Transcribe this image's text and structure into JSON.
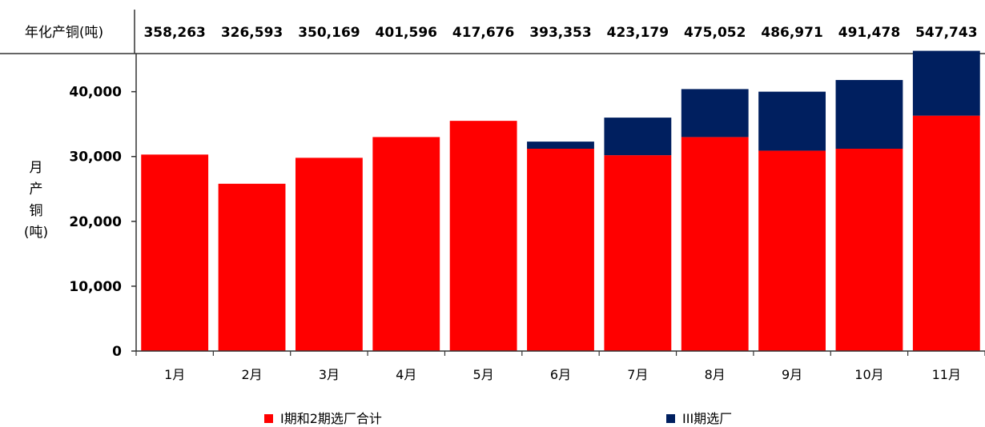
{
  "annual_row": {
    "label": "年化产铜(吨)",
    "values": [
      "358,263",
      "326,593",
      "350,169",
      "401,596",
      "417,676",
      "393,353",
      "423,179",
      "475,052",
      "486,971",
      "491,478",
      "547,743"
    ]
  },
  "y_axis_label_chars": [
    "月",
    "产",
    "铜",
    "(吨)"
  ],
  "colors": {
    "phase12": "#ff0000",
    "phase3": "#001f5f",
    "axis": "#333333"
  },
  "chart_data": {
    "type": "bar",
    "stacked": true,
    "categories": [
      "1月",
      "2月",
      "3月",
      "4月",
      "5月",
      "6月",
      "7月",
      "8月",
      "9月",
      "10月",
      "11月"
    ],
    "series": [
      {
        "name": "I期和2期选厂合计",
        "values": [
          30300,
          25800,
          29800,
          33000,
          35500,
          31200,
          30200,
          33000,
          30900,
          31200,
          36300
        ]
      },
      {
        "name": "III期选厂",
        "values": [
          0,
          0,
          0,
          0,
          0,
          1100,
          5800,
          7400,
          9100,
          10600,
          10000
        ]
      }
    ],
    "ylim": [
      0,
      46000
    ],
    "yticks": [
      0,
      10000,
      20000,
      30000,
      40000
    ],
    "ytick_labels": [
      "0",
      "10,000",
      "20,000",
      "30,000",
      "40,000"
    ],
    "ylabel": "月产铜(吨)",
    "legend_position": "bottom"
  }
}
